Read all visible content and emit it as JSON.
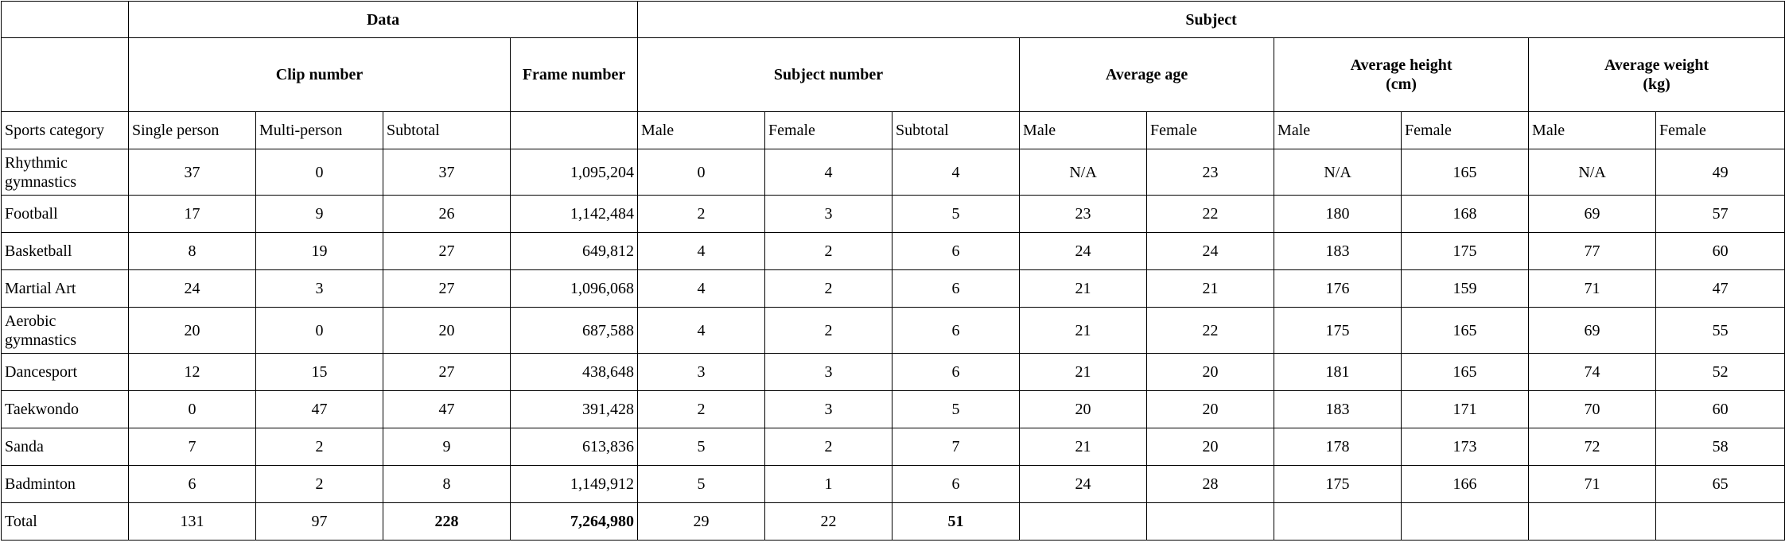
{
  "headers": {
    "data": "Data",
    "subject": "Subject",
    "clip_number": "Clip number",
    "frame_number": "Frame number",
    "subject_number": "Subject number",
    "average_age": "Average age",
    "average_height": "Average height (cm)",
    "average_weight": "Average weight (kg)",
    "sports_category": "Sports category",
    "single_person": "Single person",
    "multi_person": "Multi-person",
    "subtotal": "Subtotal",
    "male": "Male",
    "female": "Female"
  },
  "rows": [
    {
      "category": "Rhythmic gymnastics",
      "single": "37",
      "multi": "0",
      "subtotal": "37",
      "frames": "1,095,204",
      "subj_male": "0",
      "subj_female": "4",
      "subj_subtotal": "4",
      "age_male": "N/A",
      "age_female": "23",
      "height_male": "N/A",
      "height_female": "165",
      "weight_male": "N/A",
      "weight_female": "49"
    },
    {
      "category": "Football",
      "single": "17",
      "multi": "9",
      "subtotal": "26",
      "frames": "1,142,484",
      "subj_male": "2",
      "subj_female": "3",
      "subj_subtotal": "5",
      "age_male": "23",
      "age_female": "22",
      "height_male": "180",
      "height_female": "168",
      "weight_male": "69",
      "weight_female": "57"
    },
    {
      "category": "Basketball",
      "single": "8",
      "multi": "19",
      "subtotal": "27",
      "frames": "649,812",
      "subj_male": "4",
      "subj_female": "2",
      "subj_subtotal": "6",
      "age_male": "24",
      "age_female": "24",
      "height_male": "183",
      "height_female": "175",
      "weight_male": "77",
      "weight_female": "60"
    },
    {
      "category": "Martial Art",
      "single": "24",
      "multi": "3",
      "subtotal": "27",
      "frames": "1,096,068",
      "subj_male": "4",
      "subj_female": "2",
      "subj_subtotal": "6",
      "age_male": "21",
      "age_female": "21",
      "height_male": "176",
      "height_female": "159",
      "weight_male": "71",
      "weight_female": "47"
    },
    {
      "category": "Aerobic gymnastics",
      "single": "20",
      "multi": "0",
      "subtotal": "20",
      "frames": "687,588",
      "subj_male": "4",
      "subj_female": "2",
      "subj_subtotal": "6",
      "age_male": "21",
      "age_female": "22",
      "height_male": "175",
      "height_female": "165",
      "weight_male": "69",
      "weight_female": "55"
    },
    {
      "category": "Dancesport",
      "single": "12",
      "multi": "15",
      "subtotal": "27",
      "frames": "438,648",
      "subj_male": "3",
      "subj_female": "3",
      "subj_subtotal": "6",
      "age_male": "21",
      "age_female": "20",
      "height_male": "181",
      "height_female": "165",
      "weight_male": "74",
      "weight_female": "52"
    },
    {
      "category": "Taekwondo",
      "single": "0",
      "multi": "47",
      "subtotal": "47",
      "frames": "391,428",
      "subj_male": "2",
      "subj_female": "3",
      "subj_subtotal": "5",
      "age_male": "20",
      "age_female": "20",
      "height_male": "183",
      "height_female": "171",
      "weight_male": "70",
      "weight_female": "60"
    },
    {
      "category": "Sanda",
      "single": "7",
      "multi": "2",
      "subtotal": "9",
      "frames": "613,836",
      "subj_male": "5",
      "subj_female": "2",
      "subj_subtotal": "7",
      "age_male": "21",
      "age_female": "20",
      "height_male": "178",
      "height_female": "173",
      "weight_male": "72",
      "weight_female": "58"
    },
    {
      "category": "Badminton",
      "single": "6",
      "multi": "2",
      "subtotal": "8",
      "frames": "1,149,912",
      "subj_male": "5",
      "subj_female": "1",
      "subj_subtotal": "6",
      "age_male": "24",
      "age_female": "28",
      "height_male": "175",
      "height_female": "166",
      "weight_male": "71",
      "weight_female": "65"
    }
  ],
  "total": {
    "label": "Total",
    "single": "131",
    "multi": "97",
    "subtotal": "228",
    "frames": "7,264,980",
    "subj_male": "29",
    "subj_female": "22",
    "subj_subtotal": "51"
  }
}
